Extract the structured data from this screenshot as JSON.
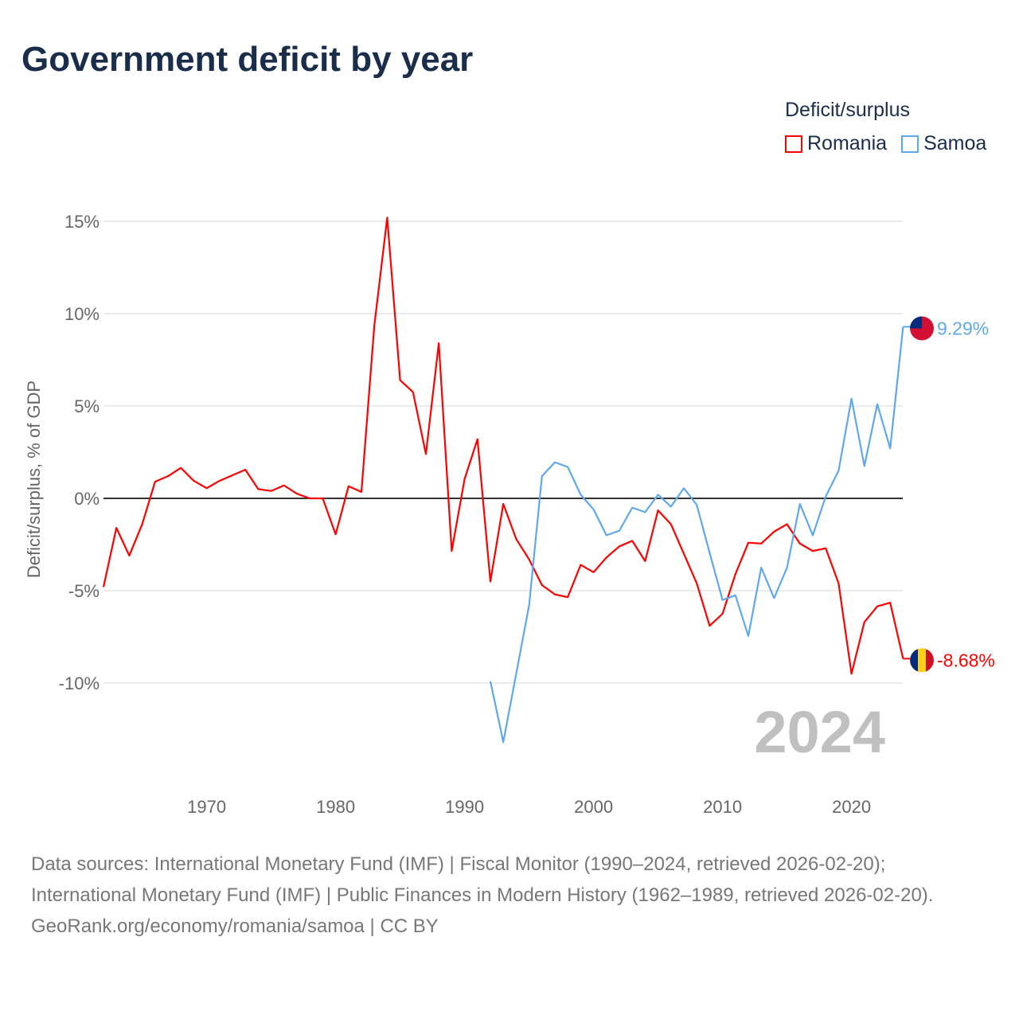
{
  "chart_data": {
    "type": "line",
    "title": "Government deficit by year",
    "xlabel": "",
    "ylabel": "Deficit/surplus, % of GDP",
    "xlim": [
      1962,
      2024
    ],
    "ylim": [
      -14,
      16
    ],
    "x_ticks": [
      1970,
      1980,
      1990,
      2000,
      2010,
      2020
    ],
    "y_ticks": [
      {
        "v": 15,
        "label": "15%"
      },
      {
        "v": 10,
        "label": "10%"
      },
      {
        "v": 5,
        "label": "5%"
      },
      {
        "v": 0,
        "label": "0%"
      },
      {
        "v": -5,
        "label": "-5%"
      },
      {
        "v": -10,
        "label": "-10%"
      }
    ],
    "grid": true,
    "legend_title": "Deficit/surplus",
    "legend_position": "top-right",
    "year_watermark": "2024",
    "series": [
      {
        "name": "Romania",
        "color": "#ff0000",
        "start_year": 1962,
        "end_label": "-8.68%",
        "values": [
          -4.8,
          -1.6,
          -3.1,
          -1.4,
          0.9,
          1.2,
          1.65,
          0.95,
          0.55,
          0.95,
          1.25,
          1.55,
          0.5,
          0.4,
          0.7,
          0.25,
          0,
          0,
          -1.95,
          0.65,
          0.35,
          9.35,
          15.2,
          6.4,
          5.75,
          2.4,
          8.4,
          -2.85,
          1.05,
          3.2,
          -4.5,
          -0.3,
          -2.2,
          -3.3,
          -4.7,
          -5.2,
          -5.35,
          -3.6,
          -4.0,
          -3.2,
          -2.6,
          -2.3,
          -3.4,
          -0.65,
          -1.4,
          -3.0,
          -4.6,
          -6.9,
          -6.25,
          -4.1,
          -2.4,
          -2.45,
          -1.8,
          -1.4,
          -2.45,
          -2.85,
          -2.7,
          -4.6,
          -9.5,
          -6.7,
          -5.85,
          -5.65,
          -8.68
        ]
      },
      {
        "name": "Samoa",
        "color": "#5fa8ec",
        "start_year": 1992,
        "end_label": "9.29%",
        "values": [
          -9.9,
          -13.2,
          -9.5,
          -5.8,
          1.2,
          1.95,
          1.7,
          0.2,
          -0.6,
          -2.0,
          -1.75,
          -0.5,
          -0.75,
          0.2,
          -0.45,
          0.55,
          -0.35,
          -2.95,
          -5.5,
          -5.25,
          -7.45,
          -3.75,
          -5.4,
          -3.75,
          -0.3,
          -2.0,
          0.1,
          1.5,
          5.4,
          1.75,
          5.1,
          2.7,
          9.29
        ]
      }
    ]
  },
  "footer": {
    "sources": "Data sources: International Monetary Fund (IMF) | Fiscal Monitor (1990–2024, retrieved 2026-02-20); International Monetary Fund (IMF) | Public Finances in Modern History (1962–1989, retrieved 2026-02-20).",
    "credit": "GeoRank.org/economy/romania/samoa | CC BY"
  }
}
